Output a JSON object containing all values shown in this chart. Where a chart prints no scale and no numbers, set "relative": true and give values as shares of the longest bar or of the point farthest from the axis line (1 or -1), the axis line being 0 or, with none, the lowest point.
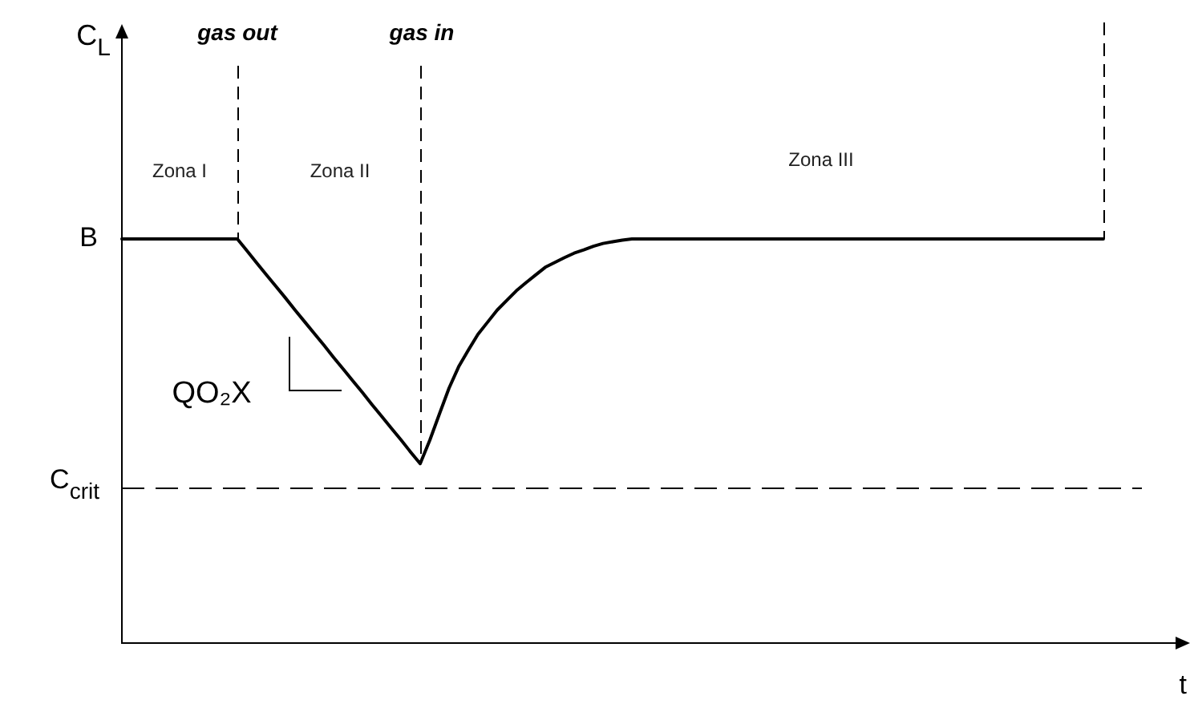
{
  "chart_data": {
    "type": "line",
    "relative": true,
    "color": "#000000",
    "categories": [
      null,
      null,
      null,
      null,
      null,
      null,
      null,
      null,
      null,
      null,
      null,
      null,
      null,
      null,
      null,
      null,
      null,
      null,
      null,
      null,
      null,
      null,
      null,
      null,
      null,
      null,
      null,
      null,
      null,
      null,
      null,
      null,
      null,
      null,
      null,
      null,
      null,
      null,
      null,
      null,
      null,
      null,
      null,
      null,
      null,
      null,
      null,
      null,
      null,
      null,
      null,
      null,
      null,
      null,
      null,
      null,
      null,
      null,
      null,
      null,
      null,
      null,
      null,
      null,
      null,
      null,
      null,
      null,
      null,
      null,
      null,
      null,
      null,
      null,
      null,
      null,
      null,
      null,
      null,
      null,
      null,
      null,
      null,
      null,
      null,
      null,
      null,
      null,
      null,
      null,
      null,
      null,
      null,
      null,
      null,
      null,
      null,
      null,
      null,
      null,
      null,
      null,
      null
    ],
    "values": [
      1,
      1,
      1,
      1,
      1,
      1,
      1,
      1,
      1,
      1,
      1,
      1,
      1,
      0.971,
      0.941,
      0.912,
      0.883,
      0.854,
      0.824,
      0.795,
      0.766,
      0.737,
      0.707,
      0.678,
      0.649,
      0.62,
      0.59,
      0.561,
      0.532,
      0.503,
      0.473,
      0.444,
      0.502,
      0.567,
      0.631,
      0.684,
      0.725,
      0.764,
      0.794,
      0.824,
      0.848,
      0.872,
      0.892,
      0.911,
      0.93,
      0.942,
      0.954,
      0.965,
      0.973,
      0.982,
      0.989,
      0.993,
      0.997,
      1,
      1,
      1,
      1,
      1,
      1,
      1,
      1,
      1,
      1,
      1,
      1,
      1,
      1,
      1,
      1,
      1,
      1,
      1,
      1,
      1,
      1,
      1,
      1,
      1,
      1,
      1,
      1,
      1,
      1,
      1,
      1,
      1,
      1,
      1,
      1,
      1,
      1,
      1,
      1,
      1,
      1,
      1,
      1,
      1,
      1,
      1,
      1,
      1,
      1
    ],
    "xlabel": "t",
    "ref_lines": [
      {
        "axis": "y",
        "value": 0.385,
        "label": "C$_{crit}$",
        "line_style": "dashed",
        "color": "#000000"
      }
    ],
    "annotations": [
      "C$_{L}$",
      "gas out",
      "gas in",
      "Zona I",
      "Zona II",
      "Zona III",
      "B",
      "QO₂X"
    ]
  }
}
